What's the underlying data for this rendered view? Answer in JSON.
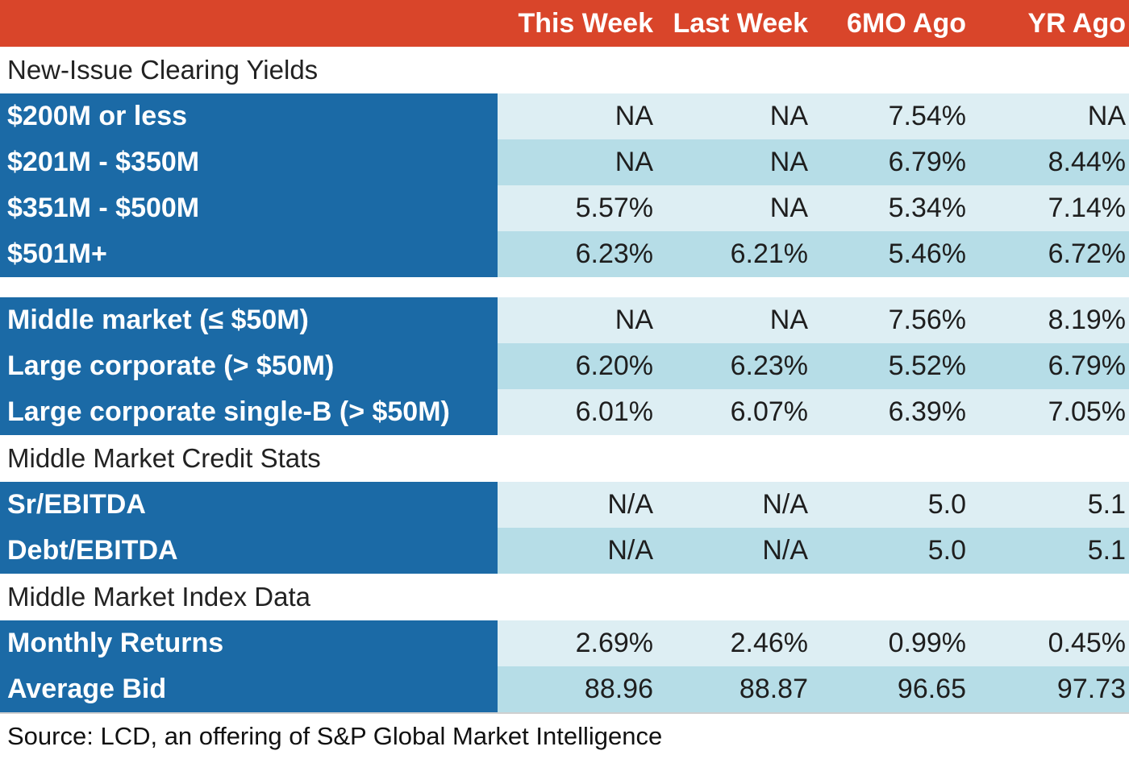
{
  "colors": {
    "header_bg": "#d9452a",
    "label_bg": "#1b6aa6",
    "row_light": "#ddeef3",
    "row_dark": "#b6dde7"
  },
  "chart_data": {
    "type": "table",
    "columns": [
      "This Week",
      "Last Week",
      "6MO Ago",
      "YR Ago"
    ],
    "sections": [
      {
        "title": "New-Issue Clearing Yields",
        "rows": [
          {
            "label": "$200M or less",
            "values": [
              "NA",
              "NA",
              "7.54%",
              "NA"
            ]
          },
          {
            "label": "$201M - $350M",
            "values": [
              "NA",
              "NA",
              "6.79%",
              "8.44%"
            ]
          },
          {
            "label": "$351M - $500M",
            "values": [
              "5.57%",
              "NA",
              "5.34%",
              "7.14%"
            ]
          },
          {
            "label": "$501M+",
            "values": [
              "6.23%",
              "6.21%",
              "5.46%",
              "6.72%"
            ]
          }
        ]
      },
      {
        "title": "",
        "rows": [
          {
            "label": "Middle market (≤ $50M)",
            "values": [
              "NA",
              "NA",
              "7.56%",
              "8.19%"
            ]
          },
          {
            "label": "Large corporate (> $50M)",
            "values": [
              "6.20%",
              "6.23%",
              "5.52%",
              "6.79%"
            ]
          },
          {
            "label": "Large corporate single-B (> $50M)",
            "values": [
              "6.01%",
              "6.07%",
              "6.39%",
              "7.05%"
            ]
          }
        ]
      },
      {
        "title": "Middle Market Credit Stats",
        "rows": [
          {
            "label": "Sr/EBITDA",
            "values": [
              "N/A",
              "N/A",
              "5.0",
              "5.1"
            ]
          },
          {
            "label": "Debt/EBITDA",
            "values": [
              "N/A",
              "N/A",
              "5.0",
              "5.1"
            ]
          }
        ]
      },
      {
        "title": "Middle Market Index Data",
        "rows": [
          {
            "label": "Monthly Returns",
            "values": [
              "2.69%",
              "2.46%",
              "0.99%",
              "0.45%"
            ]
          },
          {
            "label": "Average Bid",
            "values": [
              "88.96",
              "88.87",
              "96.65",
              "97.73"
            ]
          }
        ]
      }
    ],
    "source": "Source: LCD, an offering of S&P Global Market Intelligence"
  }
}
